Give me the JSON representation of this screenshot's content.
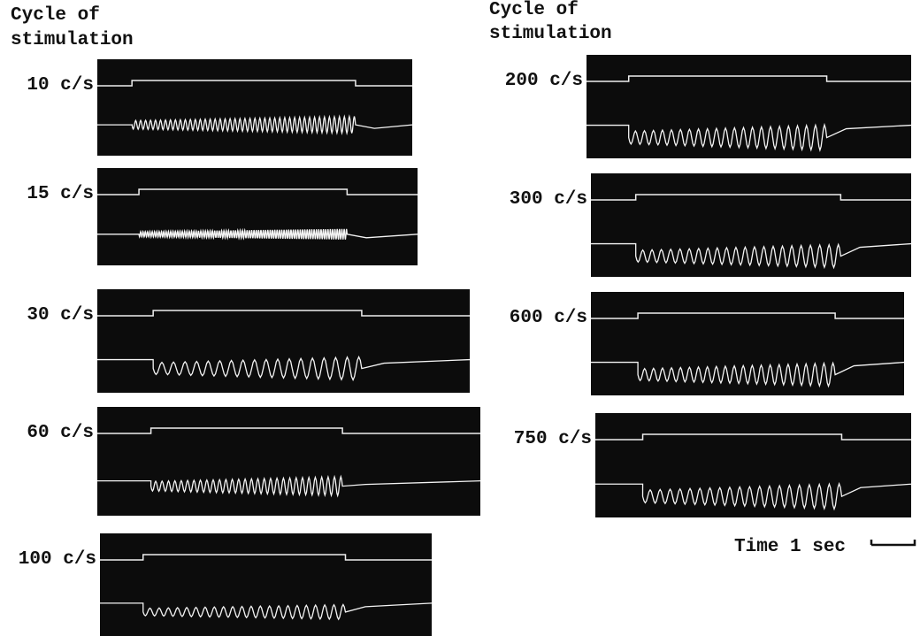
{
  "columns": [
    {
      "header": [
        "Cycle of",
        "stimulation"
      ],
      "panels": [
        {
          "label": "10 c/s"
        },
        {
          "label": "15 c/s"
        },
        {
          "label": "30 c/s"
        },
        {
          "label": "60 c/s"
        },
        {
          "label": "100 c/s"
        }
      ]
    },
    {
      "header": [
        "Cycle of",
        "stimulation"
      ],
      "panels": [
        {
          "label": "200 c/s"
        },
        {
          "label": "300 c/s"
        },
        {
          "label": "600 c/s"
        },
        {
          "label": "750 c/s"
        }
      ]
    }
  ],
  "time_scale": "Time 1 sec"
}
